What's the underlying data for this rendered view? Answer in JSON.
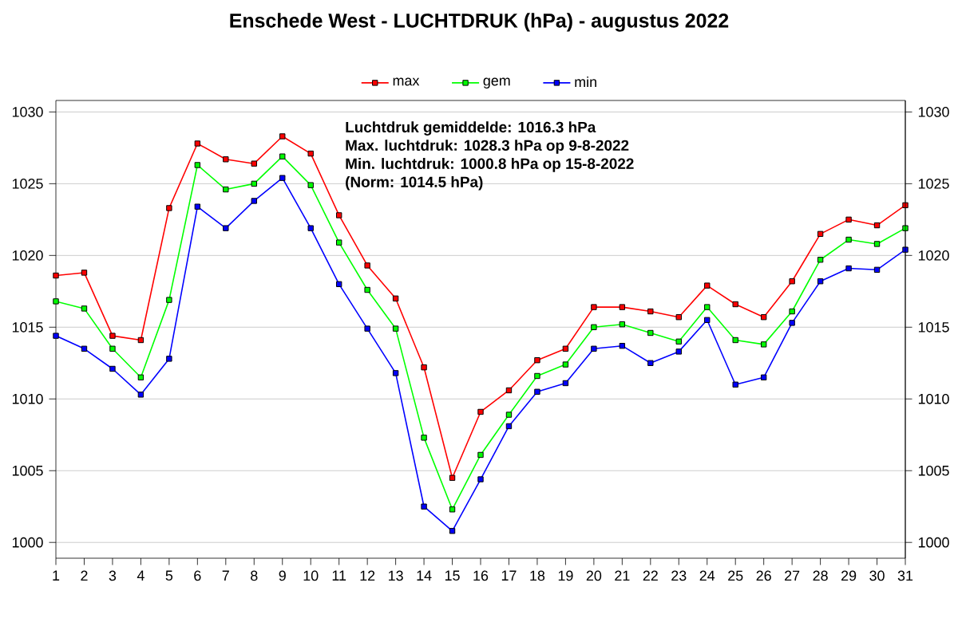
{
  "chart_data": {
    "type": "line",
    "title": "Enschede West  -  LUCHTDRUK (hPa)  -  augustus 2022",
    "x": [
      1,
      2,
      3,
      4,
      5,
      6,
      7,
      8,
      9,
      10,
      11,
      12,
      13,
      14,
      15,
      16,
      17,
      18,
      19,
      20,
      21,
      22,
      23,
      24,
      25,
      26,
      27,
      28,
      29,
      30,
      31
    ],
    "series": [
      {
        "name": "max",
        "color": "#ff0000",
        "values": [
          1018.6,
          1018.8,
          1014.4,
          1014.1,
          1023.3,
          1027.8,
          1026.7,
          1026.4,
          1028.3,
          1027.1,
          1022.8,
          1019.3,
          1017.0,
          1012.2,
          1004.5,
          1009.1,
          1010.6,
          1012.7,
          1013.5,
          1016.4,
          1016.4,
          1016.1,
          1015.7,
          1017.9,
          1016.6,
          1015.7,
          1018.2,
          1021.5,
          1022.5,
          1022.1,
          1023.5
        ]
      },
      {
        "name": "gem",
        "color": "#00ff00",
        "values": [
          1016.8,
          1016.3,
          1013.5,
          1011.5,
          1016.9,
          1026.3,
          1024.6,
          1025.0,
          1026.9,
          1024.9,
          1020.9,
          1017.6,
          1014.9,
          1007.3,
          1002.3,
          1006.1,
          1008.9,
          1011.6,
          1012.4,
          1015.0,
          1015.2,
          1014.6,
          1014.0,
          1016.4,
          1014.1,
          1013.8,
          1016.1,
          1019.7,
          1021.1,
          1020.8,
          1021.9
        ]
      },
      {
        "name": "min",
        "color": "#0000ff",
        "values": [
          1014.4,
          1013.5,
          1012.1,
          1010.3,
          1012.8,
          1023.4,
          1021.9,
          1023.8,
          1025.4,
          1021.9,
          1018.0,
          1014.9,
          1011.8,
          1002.5,
          1000.8,
          1004.4,
          1008.1,
          1010.5,
          1011.1,
          1013.5,
          1013.7,
          1012.5,
          1013.3,
          1015.5,
          1011.0,
          1011.5,
          1015.3,
          1018.2,
          1019.1,
          1019.0,
          1020.4
        ]
      }
    ],
    "xlim": [
      1,
      31
    ],
    "xticks": [
      1,
      2,
      3,
      4,
      5,
      6,
      7,
      8,
      9,
      10,
      11,
      12,
      13,
      14,
      15,
      16,
      17,
      18,
      19,
      20,
      21,
      22,
      23,
      24,
      25,
      26,
      27,
      28,
      29,
      30,
      31
    ],
    "ylim": [
      998.9,
      1030.8
    ],
    "yticks": [
      1000,
      1005,
      1010,
      1015,
      1020,
      1025,
      1030
    ],
    "y2lim": [
      998.9,
      1030.8
    ],
    "y2ticks": [
      1000,
      1005,
      1010,
      1015,
      1020,
      1025,
      1030
    ],
    "grid": "y",
    "legend": "top",
    "marker": "square",
    "line_style": "solid",
    "annotations": [
      "Luchtdruk gemiddelde: 1016.3  hPa",
      "Max. luchtdruk: 1028.3  hPa op 9-8-2022",
      "Min. luchtdruk: 1000.8  hPa op 15-8-2022",
      "(Norm: 1014.5 hPa)"
    ]
  }
}
